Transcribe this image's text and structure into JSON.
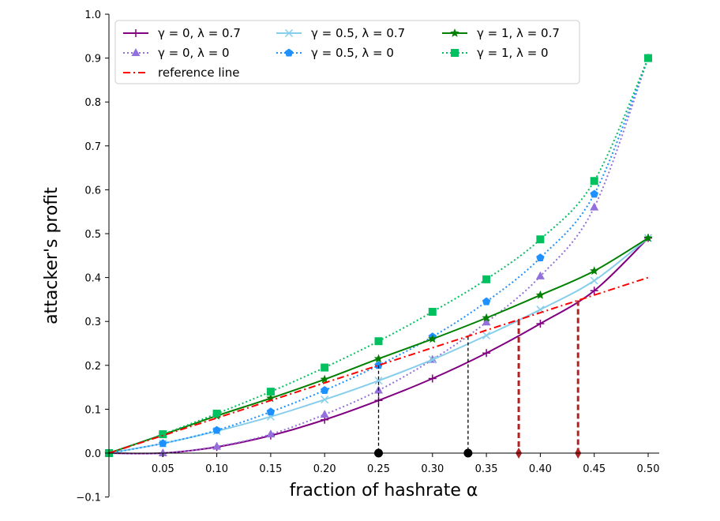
{
  "chart_data": {
    "type": "line",
    "xlabel": "fraction of hashrate α",
    "ylabel": "attacker's profit",
    "xlim": [
      0,
      0.5
    ],
    "ylim": [
      -0.1,
      1.0
    ],
    "x_ticks": [
      0.05,
      0.1,
      0.15,
      0.2,
      0.25,
      0.3,
      0.35,
      0.4,
      0.45,
      0.5
    ],
    "x_tick_labels": [
      "0.05",
      "0.10",
      "0.15",
      "0.20",
      "0.25",
      "0.30",
      "0.35",
      "0.40",
      "0.45",
      "0.50"
    ],
    "y_ticks": [
      -0.1,
      0.0,
      0.1,
      0.2,
      0.3,
      0.4,
      0.5,
      0.6,
      0.7,
      0.8,
      0.9,
      1.0
    ],
    "y_tick_labels": [
      "−0.1",
      "0.0",
      "0.1",
      "0.2",
      "0.3",
      "0.4",
      "0.5",
      "0.6",
      "0.7",
      "0.8",
      "0.9",
      "1.0"
    ],
    "grid": false,
    "legend_position": "top-left",
    "series": [
      {
        "name": "γ = 0, λ = 0.7",
        "color": "#800080",
        "line_style": "solid",
        "marker": "plus",
        "x": [
          0,
          0.05,
          0.1,
          0.15,
          0.2,
          0.25,
          0.3,
          0.35,
          0.4,
          0.45,
          0.5
        ],
        "y": [
          0,
          0.0,
          0.014,
          0.04,
          0.076,
          0.12,
          0.17,
          0.228,
          0.295,
          0.37,
          0.49
        ]
      },
      {
        "name": "γ = 0, λ = 0",
        "color": "#9370DB",
        "line_style": "dotted",
        "marker": "triangle",
        "x": [
          0,
          0.05,
          0.1,
          0.15,
          0.2,
          0.25,
          0.3,
          0.35,
          0.4,
          0.45,
          0.5
        ],
        "y": [
          0,
          0.0,
          0.015,
          0.043,
          0.088,
          0.143,
          0.213,
          0.298,
          0.403,
          0.56,
          0.9
        ]
      },
      {
        "name": "γ = 0.5, λ = 0.7",
        "color": "#87CEEB",
        "line_style": "solid",
        "marker": "x",
        "x": [
          0,
          0.05,
          0.1,
          0.15,
          0.2,
          0.25,
          0.3,
          0.35,
          0.4,
          0.45,
          0.5
        ],
        "y": [
          0,
          0.022,
          0.05,
          0.083,
          0.122,
          0.165,
          0.213,
          0.268,
          0.327,
          0.393,
          0.49
        ]
      },
      {
        "name": "γ = 0.5, λ = 0",
        "color": "#1E90FF",
        "line_style": "dotted",
        "marker": "pentagon",
        "x": [
          0,
          0.05,
          0.1,
          0.15,
          0.2,
          0.25,
          0.3,
          0.35,
          0.4,
          0.45,
          0.5
        ],
        "y": [
          0,
          0.022,
          0.052,
          0.094,
          0.143,
          0.2,
          0.265,
          0.345,
          0.445,
          0.59,
          0.9
        ]
      },
      {
        "name": "γ = 1, λ = 0.7",
        "color": "#008000",
        "line_style": "solid",
        "marker": "star",
        "x": [
          0,
          0.05,
          0.1,
          0.15,
          0.2,
          0.25,
          0.3,
          0.35,
          0.4,
          0.45,
          0.5
        ],
        "y": [
          0,
          0.042,
          0.085,
          0.125,
          0.168,
          0.215,
          0.26,
          0.308,
          0.36,
          0.415,
          0.49
        ]
      },
      {
        "name": "γ = 1, λ = 0",
        "color": "#00C060",
        "line_style": "dotted",
        "marker": "square",
        "x": [
          0,
          0.05,
          0.1,
          0.15,
          0.2,
          0.25,
          0.3,
          0.35,
          0.4,
          0.45,
          0.5
        ],
        "y": [
          0,
          0.043,
          0.09,
          0.14,
          0.195,
          0.255,
          0.322,
          0.396,
          0.487,
          0.62,
          0.9
        ]
      },
      {
        "name": "reference line",
        "color": "#FF0000",
        "line_style": "dashdot",
        "marker": "none",
        "x": [
          0,
          0.5
        ],
        "y": [
          0,
          0.4
        ]
      }
    ],
    "vertical_markers": [
      {
        "x": 0.25,
        "y_top": 0.2,
        "color": "#000000",
        "style": "thin-dashed",
        "marker": "circle"
      },
      {
        "x": 0.333,
        "y_top": 0.265,
        "color": "#000000",
        "style": "thin-dashed",
        "marker": "circle"
      },
      {
        "x": 0.38,
        "y_top": 0.304,
        "color": "#B22222",
        "style": "thick-dashed",
        "marker": "diamond"
      },
      {
        "x": 0.435,
        "y_top": 0.348,
        "color": "#B22222",
        "style": "thick-dashed",
        "marker": "diamond"
      }
    ]
  }
}
